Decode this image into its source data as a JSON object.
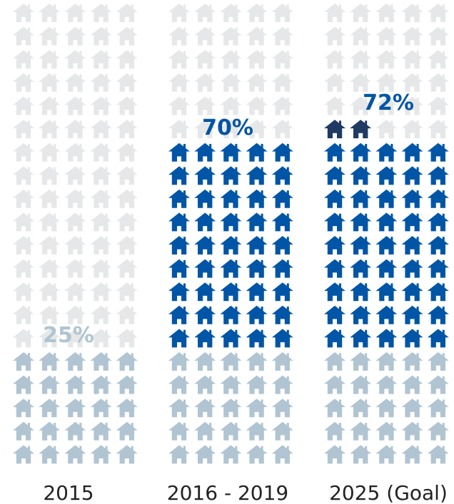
{
  "chart_data": {
    "type": "pictograph",
    "unit": "house",
    "rows_per_column": 20,
    "cols_per_column": 5,
    "categories": [
      "2015",
      "2016 - 2019",
      "2025 (Goal)"
    ],
    "bars": [
      {
        "category": "2015",
        "label": "25%",
        "total_percent": 25,
        "segments": [
          {
            "icons": 25,
            "color": "#b0c4d2"
          }
        ]
      },
      {
        "category": "2016 - 2019",
        "label": "70%",
        "total_percent": 70,
        "segments": [
          {
            "icons": 25,
            "color": "#b0c4d2"
          },
          {
            "icons": 45,
            "color": "#0055a6"
          }
        ]
      },
      {
        "category": "2025 (Goal)",
        "label": "72%",
        "total_percent": 72,
        "segments": [
          {
            "icons": 25,
            "color": "#b0c4d2"
          },
          {
            "icons": 45,
            "color": "#0055a6"
          },
          {
            "icons": 2,
            "color": "#1f3b63"
          }
        ]
      }
    ],
    "colors": {
      "empty": "#e6e7e8",
      "label_2015": "#b0c4d2",
      "label_2016_2019": "#0055a6",
      "label_2025": "#0055a6"
    }
  }
}
